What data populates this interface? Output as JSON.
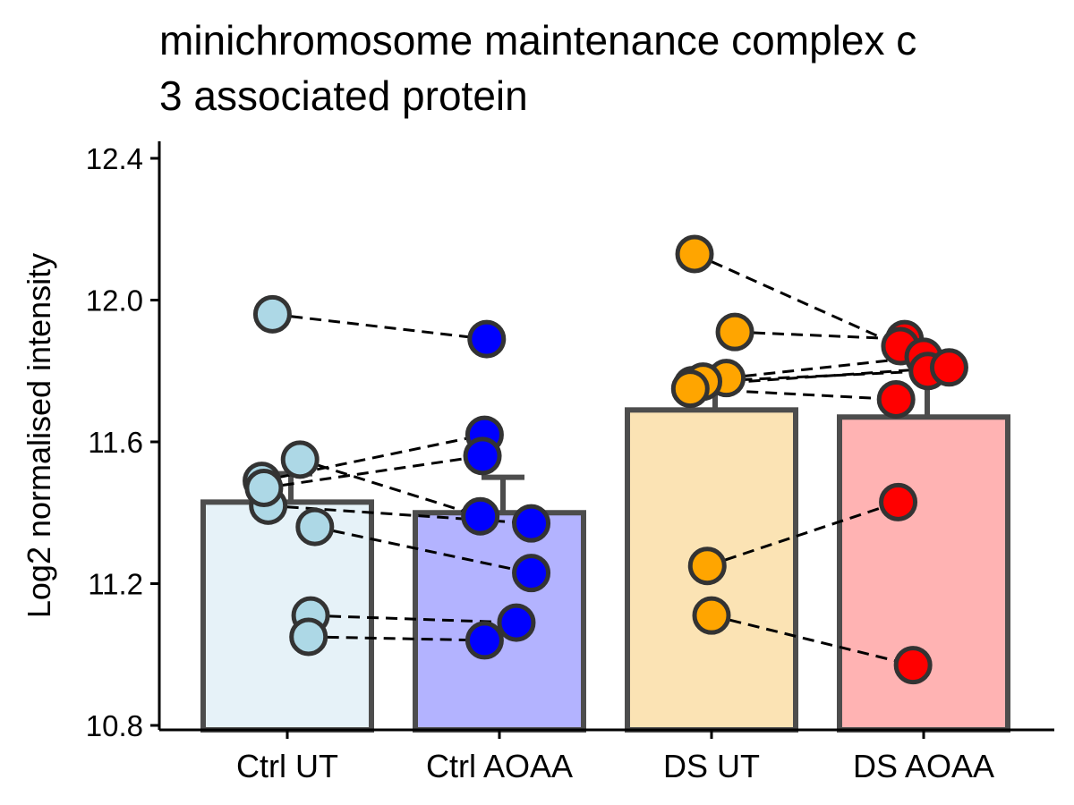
{
  "chart_data": {
    "type": "bar",
    "title_lines": [
      "minichromosome maintenance complex c",
      "3 associated protein"
    ],
    "xlabel": "",
    "ylabel": "Log2 normalised intensity",
    "ylim": [
      10.8,
      12.45
    ],
    "yticks": [
      "10.8",
      "11.2",
      "11.6",
      "12.0",
      "12.4"
    ],
    "categories": [
      "Ctrl UT",
      "Ctrl AOAA",
      "DS UT",
      "DS AOAA"
    ],
    "values": [
      11.43,
      11.4,
      11.69,
      11.67
    ],
    "error_upper": [
      11.51,
      11.5,
      11.81,
      11.84
    ],
    "bar_fill_colors": [
      "#e6f2f8",
      "#b3b3ff",
      "#fbe3b4",
      "#ffb3b3"
    ],
    "point_colors": [
      "#add8e6",
      "#0000ff",
      "#ffa500",
      "#ff0000"
    ],
    "bar_edge_color": "#4d4d4d",
    "points": [
      [
        {
          "jitter": -0.07,
          "y": 11.96
        },
        {
          "jitter": 0.06,
          "y": 11.55
        },
        {
          "jitter": -0.12,
          "y": 11.49
        },
        {
          "jitter": -0.09,
          "y": 11.42
        },
        {
          "jitter": -0.11,
          "y": 11.47
        },
        {
          "jitter": 0.13,
          "y": 11.36
        },
        {
          "jitter": 0.11,
          "y": 11.11
        },
        {
          "jitter": 0.1,
          "y": 11.05
        }
      ],
      [
        {
          "jitter": -0.06,
          "y": 11.89
        },
        {
          "jitter": -0.07,
          "y": 11.62
        },
        {
          "jitter": -0.08,
          "y": 11.56
        },
        {
          "jitter": -0.09,
          "y": 11.39
        },
        {
          "jitter": 0.15,
          "y": 11.37
        },
        {
          "jitter": 0.15,
          "y": 11.23
        },
        {
          "jitter": 0.08,
          "y": 11.09
        },
        {
          "jitter": -0.07,
          "y": 11.04
        }
      ],
      [
        {
          "jitter": -0.08,
          "y": 12.13
        },
        {
          "jitter": 0.11,
          "y": 11.91
        },
        {
          "jitter": -0.09,
          "y": 11.76
        },
        {
          "jitter": 0.07,
          "y": 11.78
        },
        {
          "jitter": -0.04,
          "y": 11.77
        },
        {
          "jitter": -0.1,
          "y": 11.75
        },
        {
          "jitter": -0.02,
          "y": 11.25
        },
        {
          "jitter": 0.0,
          "y": 11.11
        }
      ],
      [
        {
          "jitter": -0.09,
          "y": 11.89
        },
        {
          "jitter": -0.11,
          "y": 11.87
        },
        {
          "jitter": 0.0,
          "y": 11.84
        },
        {
          "jitter": 0.02,
          "y": 11.8
        },
        {
          "jitter": 0.12,
          "y": 11.81
        },
        {
          "jitter": -0.13,
          "y": 11.72
        },
        {
          "jitter": -0.12,
          "y": 11.43
        },
        {
          "jitter": -0.05,
          "y": 10.97
        }
      ]
    ],
    "pairs": [
      [
        [
          0,
          0
        ],
        [
          1,
          0
        ]
      ],
      [
        [
          0,
          1
        ],
        [
          1,
          3
        ]
      ],
      [
        [
          0,
          2
        ],
        [
          1,
          1
        ]
      ],
      [
        [
          0,
          3
        ],
        [
          1,
          4
        ]
      ],
      [
        [
          0,
          4
        ],
        [
          1,
          2
        ]
      ],
      [
        [
          0,
          5
        ],
        [
          1,
          5
        ]
      ],
      [
        [
          0,
          6
        ],
        [
          1,
          6
        ]
      ],
      [
        [
          0,
          7
        ],
        [
          1,
          7
        ]
      ],
      [
        [
          2,
          0
        ],
        [
          3,
          1
        ]
      ],
      [
        [
          2,
          1
        ],
        [
          3,
          0
        ]
      ],
      [
        [
          2,
          2
        ],
        [
          3,
          4
        ]
      ],
      [
        [
          2,
          3
        ],
        [
          3,
          2
        ]
      ],
      [
        [
          2,
          4
        ],
        [
          3,
          3
        ]
      ],
      [
        [
          2,
          5
        ],
        [
          3,
          5
        ]
      ],
      [
        [
          2,
          6
        ],
        [
          3,
          6
        ]
      ],
      [
        [
          2,
          7
        ],
        [
          3,
          7
        ]
      ]
    ],
    "grid": false,
    "legend": "none"
  }
}
